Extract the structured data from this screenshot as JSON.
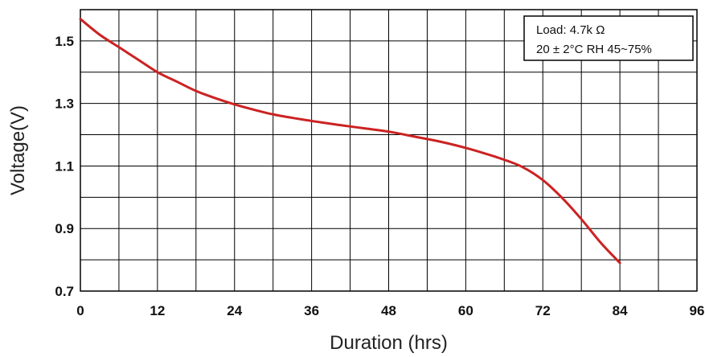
{
  "chart_data": {
    "type": "line",
    "title": "",
    "xlabel": "Duration (hrs)",
    "ylabel": "Voltage(V)",
    "xlim": [
      0,
      96
    ],
    "ylim": [
      0.7,
      1.6
    ],
    "x_ticks": [
      0,
      12,
      24,
      36,
      48,
      60,
      72,
      84,
      96
    ],
    "x_tick_labels": [
      "0",
      "12",
      "24",
      "36",
      "48",
      "60",
      "72",
      "84",
      "96"
    ],
    "y_ticks": [
      0.7,
      0.9,
      1.1,
      1.3,
      1.5
    ],
    "y_tick_labels": [
      "0.7",
      "0.9",
      "1.1",
      "1.3",
      "1.5"
    ],
    "x_grid_step": 6,
    "y_grid_step": 0.1,
    "grid": true,
    "legend_position": "top-right",
    "annotation_lines": [
      "Load: 4.7k Ω",
      "20 ± 2°C  RH 45~75%"
    ],
    "series_color": "#cc2222",
    "series": [
      {
        "x": [
          0,
          3,
          6,
          9,
          12,
          15,
          18,
          21,
          24,
          27,
          30,
          33,
          36,
          40,
          44,
          48,
          52,
          56,
          60,
          63,
          66,
          69,
          72,
          75,
          78,
          81,
          84
        ],
        "y": [
          1.57,
          1.52,
          1.48,
          1.44,
          1.4,
          1.37,
          1.34,
          1.317,
          1.297,
          1.28,
          1.265,
          1.254,
          1.244,
          1.232,
          1.221,
          1.21,
          1.194,
          1.178,
          1.158,
          1.14,
          1.12,
          1.095,
          1.055,
          0.998,
          0.93,
          0.855,
          0.79
        ]
      }
    ]
  }
}
